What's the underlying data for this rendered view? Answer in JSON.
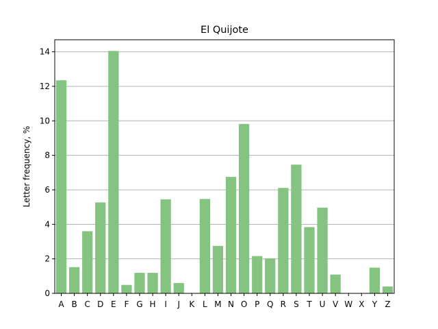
{
  "colors": {
    "bar": "#84c380",
    "grid": "#b0b0b0",
    "axis": "#000000",
    "background": "#ffffff"
  },
  "chart_data": {
    "type": "bar",
    "title": "El Quijote",
    "xlabel": "",
    "ylabel": "Letter frequency, %",
    "ylim": [
      0,
      14.7
    ],
    "yticks": [
      0,
      2,
      4,
      6,
      8,
      10,
      12,
      14
    ],
    "grid": "horizontal",
    "legend": "none",
    "categories": [
      "A",
      "B",
      "C",
      "D",
      "E",
      "F",
      "G",
      "H",
      "I",
      "J",
      "K",
      "L",
      "M",
      "N",
      "O",
      "P",
      "Q",
      "R",
      "S",
      "T",
      "U",
      "V",
      "W",
      "X",
      "Y",
      "Z"
    ],
    "values": [
      12.35,
      1.52,
      3.6,
      5.27,
      14.05,
      0.49,
      1.19,
      1.19,
      5.45,
      0.6,
      0.0,
      5.47,
      2.75,
      6.75,
      9.82,
      2.16,
      2.03,
      6.11,
      7.46,
      3.84,
      4.97,
      1.09,
      0.0,
      0.0,
      1.49,
      0.4
    ]
  }
}
